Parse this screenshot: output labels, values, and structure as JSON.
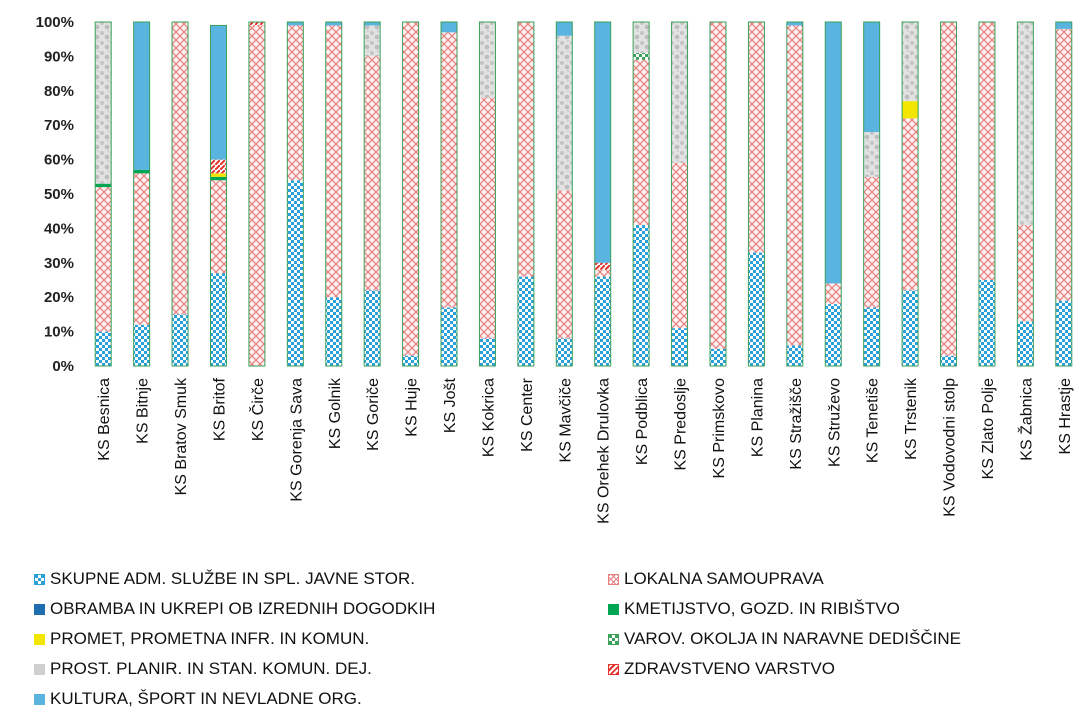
{
  "chart_data": {
    "type": "bar",
    "stacked": true,
    "percent": true,
    "ylim": [
      0,
      100
    ],
    "yticks": [
      "0%",
      "10%",
      "20%",
      "30%",
      "40%",
      "50%",
      "60%",
      "70%",
      "80%",
      "90%",
      "100%"
    ],
    "grid": false,
    "legend_position": "bottom",
    "categories": [
      "KS Besnica",
      "KS Bitnje",
      "KS Bratov Smuk",
      "KS Britof",
      "KS Čirče",
      "KS Gorenja Sava",
      "KS Golnik",
      "KS Goriče",
      "KS Huje",
      "KS Jošt",
      "KS Kokrica",
      "KS Center",
      "KS Mavčiče",
      "KS Orehek Drulovka",
      "KS Podblica",
      "KS Predoslje",
      "KS Primskovo",
      "KS Planina",
      "KS Stražišče",
      "KS Struževo",
      "KS Tenetiše",
      "KS Trstenik",
      "KS Vodovodni stolp",
      "KS Zlato Polje",
      "KS Žabnica",
      "KS Hrastje"
    ],
    "series": [
      {
        "name": "SKUPNE ADM. SLUŽBE IN SPL. JAVNE STOR.",
        "color": "#2aa0d8",
        "pattern": "checker",
        "values": [
          10,
          12,
          15,
          27,
          0,
          54,
          20,
          22,
          3,
          17,
          8,
          26,
          8,
          26,
          41,
          11,
          5,
          33,
          6,
          18,
          17,
          22,
          3,
          25,
          13,
          19
        ]
      },
      {
        "name": "LOKALNA SAMOUPRAVA",
        "color": "#e58080",
        "pattern": "cross",
        "values": [
          42,
          44,
          85,
          27,
          99,
          45,
          79,
          68,
          97,
          80,
          70,
          74,
          43,
          2,
          48,
          48,
          95,
          67,
          93,
          6,
          38,
          50,
          97,
          75,
          28,
          79
        ]
      },
      {
        "name": "OBRAMBA IN UKREPI OB IZREDNIH DOGODKIH",
        "color": "#1f6fb0",
        "pattern": "solid",
        "values": [
          0,
          0,
          0,
          0,
          0,
          0,
          0,
          0,
          0,
          0,
          0,
          0,
          0,
          0,
          0,
          0,
          0,
          0,
          0,
          0,
          0,
          0,
          0,
          0,
          0,
          0
        ]
      },
      {
        "name": "KMETIJSTVO, GOZD. IN RIBIŠTVO",
        "color": "#00a651",
        "pattern": "solid",
        "values": [
          1,
          1,
          0,
          1,
          0,
          0,
          0,
          0,
          0,
          0,
          0,
          0,
          0,
          0,
          0,
          0,
          0,
          0,
          0,
          0,
          0,
          0,
          0,
          0,
          0,
          0
        ]
      },
      {
        "name": "PROMET, PROMETNA INFR. IN KOMUN.",
        "color": "#f2e600",
        "pattern": "solid",
        "values": [
          0,
          0,
          0,
          1,
          0,
          0,
          0,
          0,
          0,
          0,
          0,
          0,
          0,
          0,
          0,
          0,
          0,
          0,
          0,
          0,
          0,
          5,
          0,
          0,
          0,
          0
        ]
      },
      {
        "name": "VAROV. OKOLJA IN NARAVNE DEDIŠČINE",
        "color": "#3aa05a",
        "pattern": "checker",
        "values": [
          0,
          0,
          0,
          0,
          0,
          0,
          0,
          0,
          0,
          0,
          0,
          0,
          0,
          0,
          2,
          0,
          0,
          0,
          0,
          0,
          0,
          0,
          0,
          0,
          0,
          0
        ]
      },
      {
        "name": "PROST. PLANIR. IN STAN. KOMUN. DEJ.",
        "color": "#cfcfcf",
        "pattern": "mottled",
        "values": [
          47,
          0,
          0,
          0,
          0,
          0,
          0,
          9,
          0,
          0,
          22,
          0,
          45,
          0,
          9,
          41,
          0,
          0,
          0,
          0,
          13,
          23,
          0,
          0,
          59,
          0
        ]
      },
      {
        "name": "ZDRAVSTVENO VARSTVO",
        "color": "#e8302a",
        "pattern": "hatch",
        "values": [
          0,
          0,
          0,
          4,
          1,
          0,
          0,
          0,
          0,
          0,
          0,
          0,
          0,
          2,
          0,
          0,
          0,
          0,
          0,
          0,
          0,
          0,
          0,
          0,
          0,
          0
        ]
      },
      {
        "name": "KULTURA, ŠPORT IN NEVLADNE ORG.",
        "color": "#5ab4e0",
        "pattern": "solid",
        "values": [
          0,
          43,
          0,
          39,
          0,
          1,
          1,
          1,
          0,
          3,
          0,
          0,
          4,
          70,
          0,
          0,
          0,
          0,
          1,
          76,
          32,
          0,
          0,
          0,
          0,
          2
        ]
      }
    ]
  },
  "legend": [
    {
      "label": "SKUPNE ADM. SLUŽBE IN SPL. JAVNE STOR.",
      "color": "#2aa0d8",
      "pattern": "checker"
    },
    {
      "label": "OBRAMBA IN UKREPI OB IZREDNIH DOGODKIH",
      "color": "#1f6fb0",
      "pattern": "solid"
    },
    {
      "label": "PROMET, PROMETNA INFR. IN KOMUN.",
      "color": "#f2e600",
      "pattern": "solid"
    },
    {
      "label": "PROST. PLANIR. IN STAN. KOMUN. DEJ.",
      "color": "#cfcfcf",
      "pattern": "mottled"
    },
    {
      "label": "KULTURA, ŠPORT IN NEVLADNE ORG.",
      "color": "#5ab4e0",
      "pattern": "solid"
    },
    {
      "label": "LOKALNA SAMOUPRAVA",
      "color": "#e58080",
      "pattern": "cross"
    },
    {
      "label": "KMETIJSTVO, GOZD. IN RIBIŠTVO",
      "color": "#00a651",
      "pattern": "solid"
    },
    {
      "label": "VAROV. OKOLJA IN NARAVNE DEDIŠČINE",
      "color": "#3aa05a",
      "pattern": "checker"
    },
    {
      "label": "ZDRAVSTVENO VARSTVO",
      "color": "#e8302a",
      "pattern": "hatch"
    }
  ]
}
